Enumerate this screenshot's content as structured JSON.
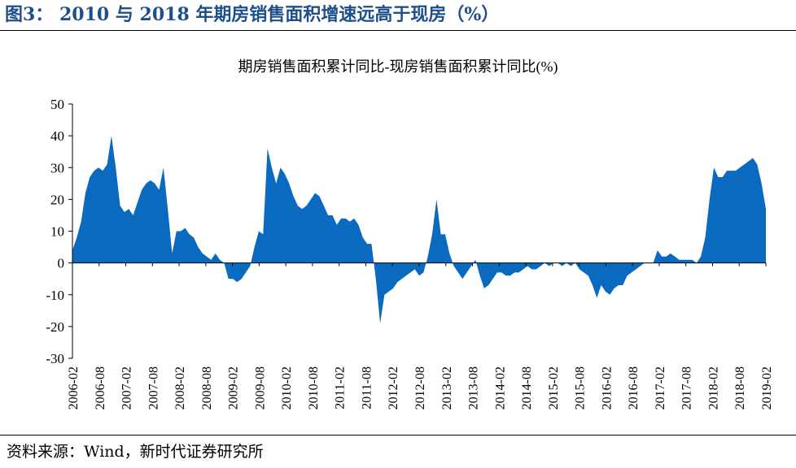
{
  "figure": {
    "title": "图3： 2010 与 2018 年期房销售面积增速远高于现房（%）",
    "source": "资料来源：Wind，新时代证券研究所"
  },
  "colors": {
    "area": "#0a6abf",
    "title": "#1f4e8c"
  },
  "chart_data": {
    "type": "area",
    "title": "期房销售面积累计同比-现房销售面积累计同比(%)",
    "xlabel": "",
    "ylabel": "",
    "ylim": [
      -30,
      50
    ],
    "yticks": [
      "50",
      "40",
      "30",
      "20",
      "10",
      "0",
      "-10",
      "-20",
      "-30"
    ],
    "xticks": [
      "2006-02",
      "2006-08",
      "2007-02",
      "2007-08",
      "2008-02",
      "2008-08",
      "2009-02",
      "2009-08",
      "2010-02",
      "2010-08",
      "2011-02",
      "2011-08",
      "2012-02",
      "2012-08",
      "2013-02",
      "2013-08",
      "2014-02",
      "2014-08",
      "2015-02",
      "2015-08",
      "2016-02",
      "2016-08",
      "2017-02",
      "2017-08",
      "2018-02",
      "2018-08",
      "2019-02"
    ],
    "grid": false,
    "legend": "none",
    "x_start": "2006-02",
    "x_end": "2019-02",
    "values": [
      4,
      8,
      13,
      22,
      27,
      29,
      30,
      29,
      31,
      40,
      30,
      18,
      16,
      17,
      15,
      19,
      23,
      25,
      26,
      25,
      23,
      30,
      17,
      3,
      10,
      10,
      11,
      9,
      8,
      5,
      3,
      2,
      1,
      3,
      1,
      0,
      -5,
      -5,
      -6,
      -5,
      -3,
      -1,
      5,
      10,
      9,
      36,
      30,
      25,
      30,
      28,
      25,
      21,
      18,
      17,
      18,
      20,
      22,
      21,
      18,
      15,
      15,
      12,
      14,
      14,
      13,
      14,
      12,
      8,
      6,
      6,
      -5,
      -19,
      -10,
      -9,
      -8,
      -6,
      -5,
      -4,
      -3,
      -2,
      -4,
      -3,
      2,
      9,
      20,
      9,
      9,
      3,
      -1,
      -3,
      -5,
      -3,
      -1,
      1,
      -4,
      -8,
      -7,
      -5,
      -3,
      -3,
      -4,
      -4,
      -3,
      -3,
      -2,
      -1,
      -2,
      -2,
      -1,
      0,
      -1,
      0,
      0,
      -1,
      0,
      -1,
      0,
      -2,
      -3,
      -4,
      -7,
      -11,
      -7,
      -9,
      -10,
      -8,
      -7,
      -7,
      -4,
      -3,
      -2,
      -1,
      0,
      0,
      0,
      4,
      2,
      2,
      3,
      2,
      1,
      1,
      1,
      1,
      0,
      2,
      8,
      20,
      30,
      27,
      27,
      29,
      29,
      29,
      30,
      31,
      32,
      33,
      31,
      25,
      17
    ]
  }
}
